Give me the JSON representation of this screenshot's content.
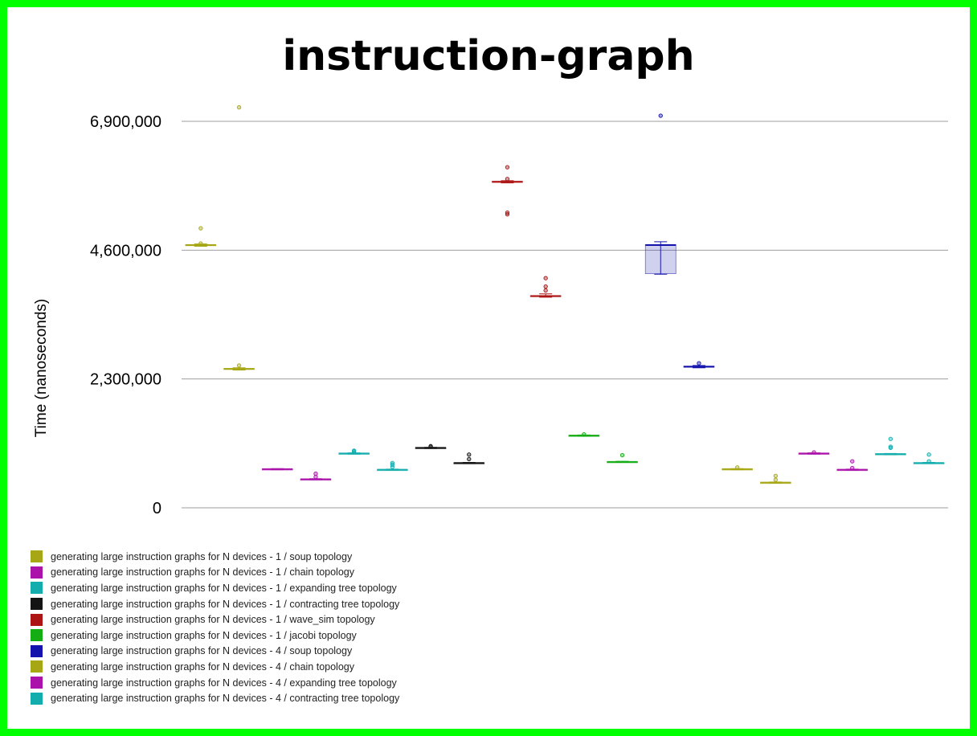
{
  "chart_data": {
    "type": "box",
    "title": "instruction-graph",
    "ylabel": "Time (nanoseconds)",
    "ylim": [
      0,
      7100000
    ],
    "yticks": [
      0,
      2300000,
      4600000,
      6900000
    ],
    "ytick_labels": [
      "0",
      "2,300,000",
      "4,600,000",
      "6,900,000"
    ],
    "grid": true,
    "legend_position": "bottom-left",
    "series": [
      {
        "name": "generating large instruction graphs for N devices - 1 / soup topology",
        "color": "#a7a715",
        "boxes": [
          {
            "median": 4690000,
            "q1": 4680000,
            "q3": 4700000,
            "whisker_low": 4670000,
            "whisker_high": 4710000,
            "outliers": [
              4720000,
              4990000
            ]
          },
          {
            "median": 2480000,
            "q1": 2470000,
            "q3": 2490000,
            "whisker_low": 2460000,
            "whisker_high": 2500000,
            "outliers": [
              2540000,
              7150000
            ]
          }
        ]
      },
      {
        "name": "generating large instruction graphs for N devices - 1 / chain topology",
        "color": "#aa12aa",
        "boxes": [
          {
            "median": 690000,
            "q1": 685000,
            "q3": 695000,
            "whisker_low": 680000,
            "whisker_high": 700000,
            "outliers": []
          },
          {
            "median": 510000,
            "q1": 505000,
            "q3": 515000,
            "whisker_low": 500000,
            "whisker_high": 520000,
            "outliers": [
              550000,
              610000
            ]
          }
        ]
      },
      {
        "name": "generating large instruction graphs for N devices - 1 / expanding tree topology",
        "color": "#14adad",
        "boxes": [
          {
            "median": 970000,
            "q1": 965000,
            "q3": 975000,
            "whisker_low": 960000,
            "whisker_high": 980000,
            "outliers": [
              990000,
              1010000,
              1020000
            ]
          },
          {
            "median": 680000,
            "q1": 675000,
            "q3": 685000,
            "whisker_low": 670000,
            "whisker_high": 690000,
            "outliers": [
              730000,
              770000,
              800000
            ]
          }
        ]
      },
      {
        "name": "generating large instruction graphs for N devices - 1 / contracting tree topology",
        "color": "#141414",
        "boxes": [
          {
            "median": 1070000,
            "q1": 1065000,
            "q3": 1075000,
            "whisker_low": 1060000,
            "whisker_high": 1080000,
            "outliers": [
              1090000,
              1100000
            ]
          },
          {
            "median": 800000,
            "q1": 795000,
            "q3": 805000,
            "whisker_low": 790000,
            "whisker_high": 810000,
            "outliers": [
              870000,
              950000
            ]
          }
        ]
      },
      {
        "name": "generating large instruction graphs for N devices - 1 / wave_sim topology",
        "color": "#ad1414",
        "boxes": [
          {
            "median": 5820000,
            "q1": 5810000,
            "q3": 5830000,
            "whisker_low": 5800000,
            "whisker_high": 5840000,
            "outliers": [
              5270000,
              5240000,
              5870000,
              6080000
            ]
          },
          {
            "median": 3780000,
            "q1": 3770000,
            "q3": 3790000,
            "whisker_low": 3760000,
            "whisker_high": 3820000,
            "outliers": [
              3880000,
              3950000,
              4100000
            ]
          }
        ]
      },
      {
        "name": "generating large instruction graphs for N devices - 1 / jacobi topology",
        "color": "#14ad14",
        "boxes": [
          {
            "median": 1290000,
            "q1": 1285000,
            "q3": 1295000,
            "whisker_low": 1280000,
            "whisker_high": 1300000,
            "outliers": [
              1310000
            ]
          },
          {
            "median": 820000,
            "q1": 815000,
            "q3": 825000,
            "whisker_low": 810000,
            "whisker_high": 830000,
            "outliers": [
              940000
            ]
          }
        ]
      },
      {
        "name": "generating large instruction graphs for N devices - 4 / soup topology",
        "color": "#1414ad",
        "boxes": [
          {
            "median": 4690000,
            "q1": 4180000,
            "q3": 4700000,
            "whisker_low": 4170000,
            "whisker_high": 4750000,
            "outliers": [
              7000000
            ]
          },
          {
            "median": 2520000,
            "q1": 2510000,
            "q3": 2530000,
            "whisker_low": 2500000,
            "whisker_high": 2540000,
            "outliers": [
              2580000
            ]
          }
        ]
      },
      {
        "name": "generating large instruction graphs for N devices - 4 / chain topology",
        "color": "#a7a715",
        "boxes": [
          {
            "median": 690000,
            "q1": 685000,
            "q3": 695000,
            "whisker_low": 680000,
            "whisker_high": 700000,
            "outliers": [
              720000
            ]
          },
          {
            "median": 450000,
            "q1": 445000,
            "q3": 455000,
            "whisker_low": 440000,
            "whisker_high": 460000,
            "outliers": [
              500000,
              570000
            ]
          }
        ]
      },
      {
        "name": "generating large instruction graphs for N devices - 4 / expanding tree topology",
        "color": "#aa12aa",
        "boxes": [
          {
            "median": 970000,
            "q1": 965000,
            "q3": 975000,
            "whisker_low": 960000,
            "whisker_high": 980000,
            "outliers": [
              990000
            ]
          },
          {
            "median": 680000,
            "q1": 675000,
            "q3": 685000,
            "whisker_low": 670000,
            "whisker_high": 690000,
            "outliers": [
              710000,
              830000
            ]
          }
        ]
      },
      {
        "name": "generating large instruction graphs for N devices - 4 / contracting tree topology",
        "color": "#14adad",
        "boxes": [
          {
            "median": 960000,
            "q1": 955000,
            "q3": 965000,
            "whisker_low": 950000,
            "whisker_high": 970000,
            "outliers": [
              1070000,
              1090000,
              1230000
            ]
          },
          {
            "median": 800000,
            "q1": 795000,
            "q3": 805000,
            "whisker_low": 790000,
            "whisker_high": 810000,
            "outliers": [
              830000,
              950000
            ]
          }
        ]
      }
    ]
  }
}
